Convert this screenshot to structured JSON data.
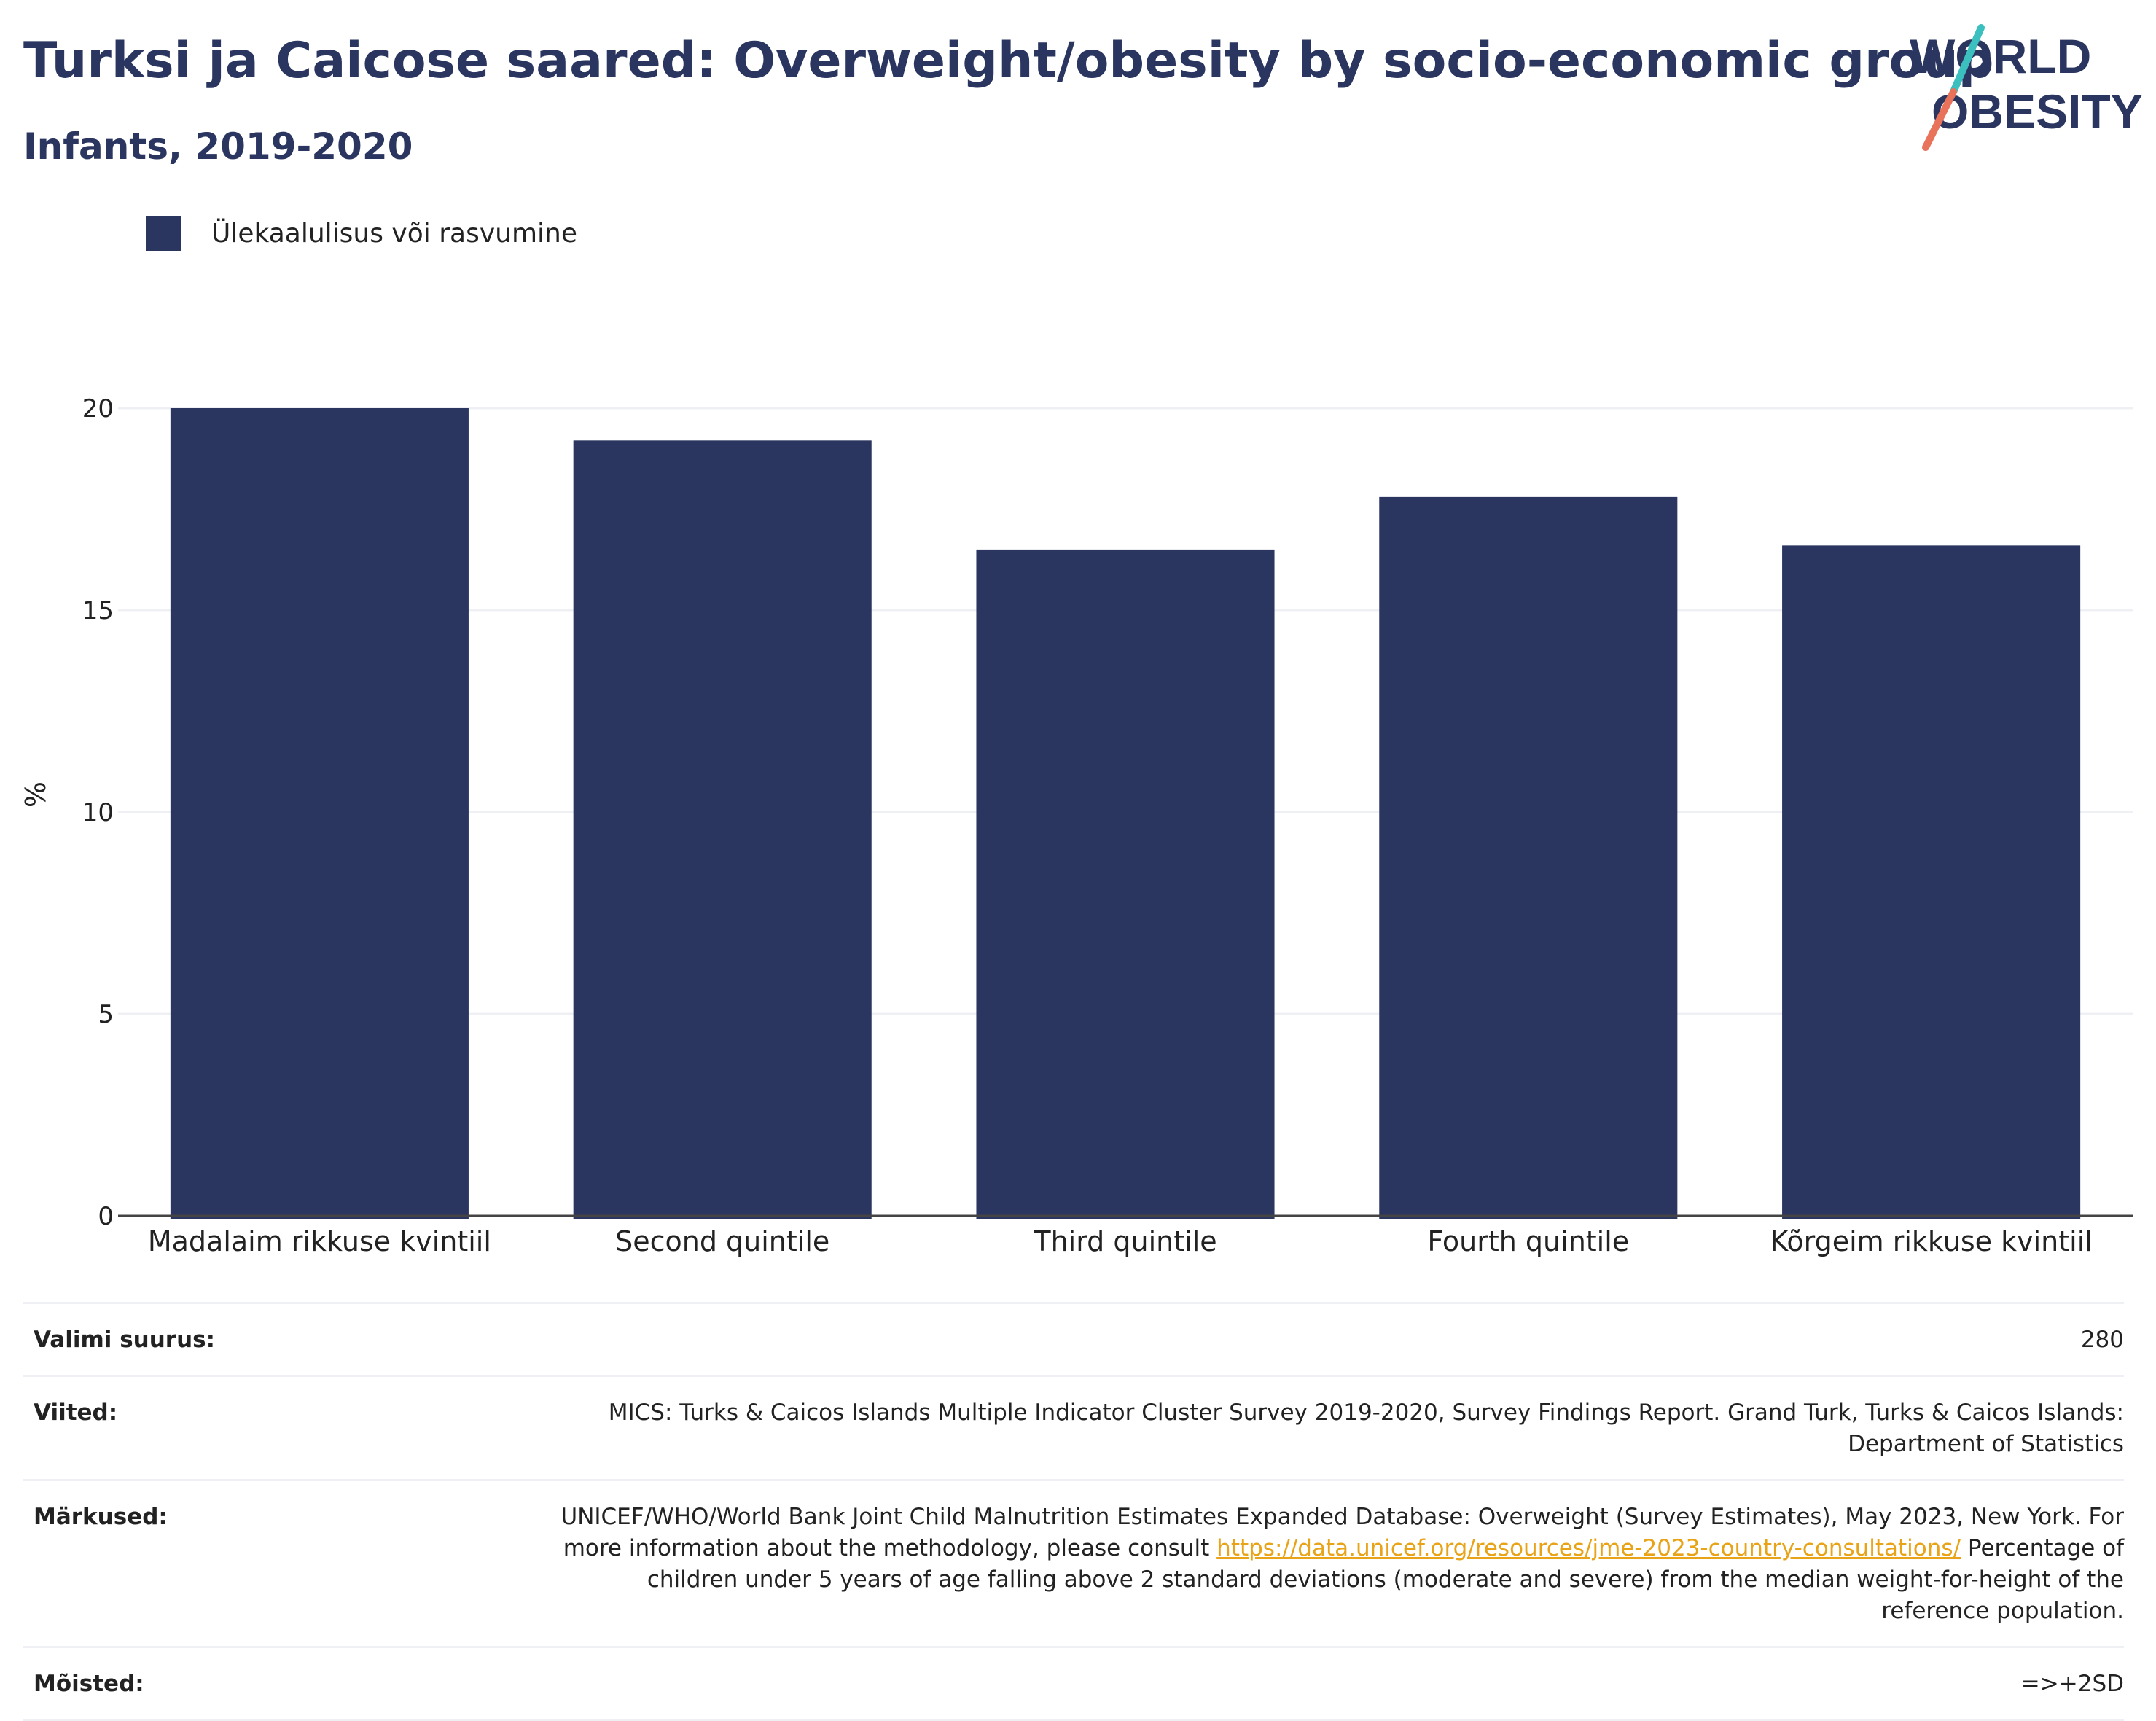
{
  "header": {
    "title": "Turksi ja Caicose saared: Overweight/obesity by socio-economic group",
    "subtitle": "Infants, 2019-2020"
  },
  "logo": {
    "line1": "WORLD",
    "line2": "OBESITY",
    "accent_teal": "#3bbfbf",
    "accent_coral": "#e8735a"
  },
  "legend": {
    "label": "Ülekaalulisus või rasvumine",
    "color": "#2a3560"
  },
  "chart_data": {
    "type": "bar",
    "categories": [
      "Madalaim rikkuse kvintiil",
      "Second quintile",
      "Third quintile",
      "Fourth quintile",
      "Kõrgeim rikkuse kvintiil"
    ],
    "series": [
      {
        "name": "Ülekaalulisus või rasvumine",
        "values": [
          20.0,
          19.2,
          16.5,
          17.8,
          16.6
        ],
        "color": "#2a3560"
      }
    ],
    "ylabel": "%",
    "ylim": [
      0,
      20
    ],
    "yticks": [
      0,
      5,
      10,
      15,
      20
    ],
    "grid": true,
    "legend_position": "top-left"
  },
  "info": {
    "sample_size": {
      "label": "Valimi suurus:",
      "value": "280"
    },
    "references": {
      "label": "Viited:",
      "value": "MICS: Turks & Caicos Islands Multiple Indicator Cluster Survey 2019-2020, Survey Findings Report. Grand Turk, Turks & Caicos Islands: Department of Statistics"
    },
    "notes": {
      "label": "Märkused:",
      "text_before": "UNICEF/WHO/World Bank Joint Child Malnutrition Estimates Expanded Database: Overweight (Survey Estimates), May 2023, New York. For more information about the methodology, please consult ",
      "link": "https://data.unicef.org/resources/jme-2023-country-consultations/",
      "text_after": " Percentage of children under 5 years of age falling above 2 standard deviations (moderate and severe) from the median weight-for-height of the reference population."
    },
    "definitions": {
      "label": "Mõisted:",
      "value": "=>+2SD"
    }
  }
}
